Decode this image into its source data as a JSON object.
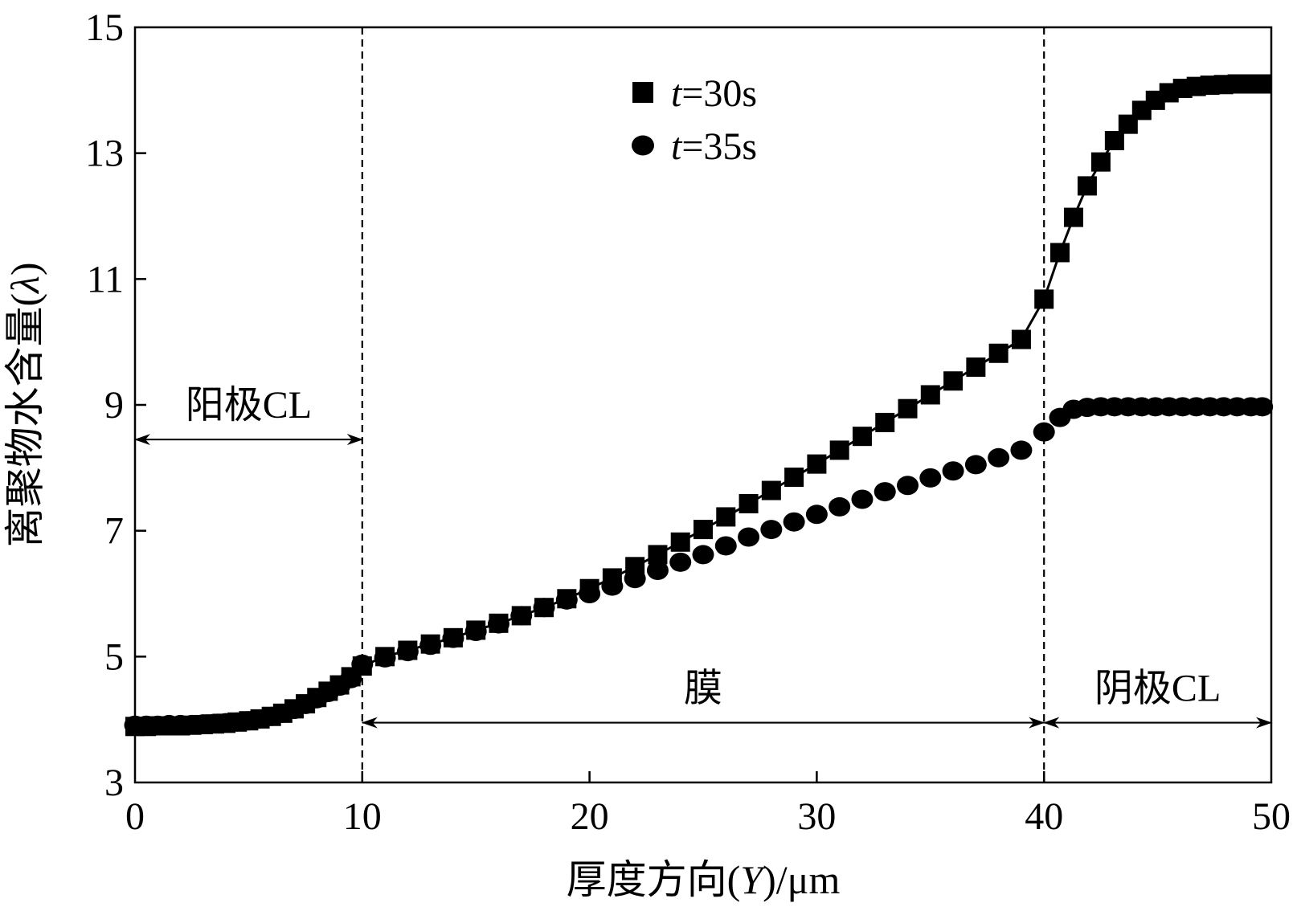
{
  "chart_data": {
    "type": "scatter",
    "xlabel_prefix": "厚度方向(",
    "xlabel_var": "Y",
    "xlabel_suffix": ")/μm",
    "ylabel_prefix": "离聚物水含量(",
    "ylabel_var": "λ",
    "ylabel_suffix": ")",
    "xlim": [
      0,
      50
    ],
    "ylim": [
      3,
      15
    ],
    "xticks": [
      0,
      10,
      20,
      30,
      40,
      50
    ],
    "yticks": [
      3,
      5,
      7,
      9,
      11,
      13,
      15
    ],
    "grid": false,
    "legend_position": "top-center",
    "region_boundaries": [
      10,
      40
    ],
    "regions": [
      {
        "label": "阳极CL",
        "x_from": 0,
        "x_to": 10,
        "arrow_y": 8.45,
        "label_y": 9.0
      },
      {
        "label": "膜",
        "x_from": 10,
        "x_to": 40,
        "arrow_y": 3.95,
        "label_y": 4.5
      },
      {
        "label": "阴极CL",
        "x_from": 40,
        "x_to": 50,
        "arrow_y": 3.95,
        "label_y": 4.5
      }
    ],
    "series": [
      {
        "name_var": "t",
        "name_rest": "=30s",
        "marker": "square",
        "line": true,
        "x": [
          0,
          0.5,
          1,
          1.5,
          2,
          2.5,
          3,
          3.5,
          4,
          4.5,
          5,
          5.5,
          6,
          6.5,
          7,
          7.5,
          8,
          8.5,
          9,
          9.5,
          10,
          11,
          12,
          13,
          14,
          15,
          16,
          17,
          18,
          19,
          20,
          21,
          22,
          23,
          24,
          25,
          26,
          27,
          28,
          29,
          30,
          31,
          32,
          33,
          34,
          35,
          36,
          37,
          38,
          39,
          40,
          40.7,
          41.3,
          41.9,
          42.5,
          43.1,
          43.7,
          44.3,
          44.9,
          45.5,
          46.1,
          46.7,
          47.3,
          47.9,
          48.5,
          49.1,
          49.6
        ],
        "y": [
          3.89,
          3.89,
          3.9,
          3.9,
          3.9,
          3.91,
          3.92,
          3.93,
          3.94,
          3.96,
          3.98,
          4.01,
          4.05,
          4.1,
          4.17,
          4.25,
          4.35,
          4.45,
          4.55,
          4.68,
          4.85,
          5.0,
          5.1,
          5.2,
          5.3,
          5.42,
          5.53,
          5.65,
          5.78,
          5.92,
          6.08,
          6.25,
          6.43,
          6.62,
          6.82,
          7.02,
          7.22,
          7.43,
          7.64,
          7.85,
          8.06,
          8.28,
          8.5,
          8.72,
          8.94,
          9.16,
          9.38,
          9.6,
          9.82,
          10.04,
          10.68,
          11.42,
          11.98,
          12.48,
          12.86,
          13.2,
          13.46,
          13.68,
          13.84,
          13.96,
          14.03,
          14.06,
          14.08,
          14.09,
          14.1,
          14.1,
          14.1
        ]
      },
      {
        "name_var": "t",
        "name_rest": "=35s",
        "marker": "circle",
        "line": false,
        "x": [
          0,
          0.5,
          1,
          1.5,
          2,
          2.5,
          3,
          3.5,
          4,
          4.5,
          5,
          5.5,
          6,
          6.5,
          7,
          7.5,
          8,
          8.5,
          9,
          9.5,
          10,
          11,
          12,
          13,
          14,
          15,
          16,
          17,
          18,
          19,
          20,
          21,
          22,
          23,
          24,
          25,
          26,
          27,
          28,
          29,
          30,
          31,
          32,
          33,
          34,
          35,
          36,
          37,
          38,
          39,
          40,
          40.7,
          41.3,
          41.9,
          42.5,
          43.1,
          43.7,
          44.3,
          44.9,
          45.5,
          46.1,
          46.7,
          47.3,
          47.9,
          48.5,
          49.1,
          49.6
        ],
        "y": [
          3.91,
          3.91,
          3.91,
          3.92,
          3.92,
          3.92,
          3.93,
          3.94,
          3.95,
          3.96,
          3.98,
          4.01,
          4.05,
          4.1,
          4.16,
          4.24,
          4.33,
          4.43,
          4.53,
          4.65,
          4.88,
          4.98,
          5.08,
          5.18,
          5.29,
          5.4,
          5.52,
          5.65,
          5.78,
          5.9,
          6.0,
          6.12,
          6.24,
          6.37,
          6.5,
          6.62,
          6.76,
          6.9,
          7.02,
          7.14,
          7.26,
          7.38,
          7.5,
          7.62,
          7.72,
          7.84,
          7.95,
          8.05,
          8.16,
          8.28,
          8.57,
          8.8,
          8.93,
          8.96,
          8.97,
          8.97,
          8.97,
          8.97,
          8.97,
          8.97,
          8.97,
          8.97,
          8.97,
          8.97,
          8.97,
          8.97,
          8.97
        ]
      }
    ]
  }
}
